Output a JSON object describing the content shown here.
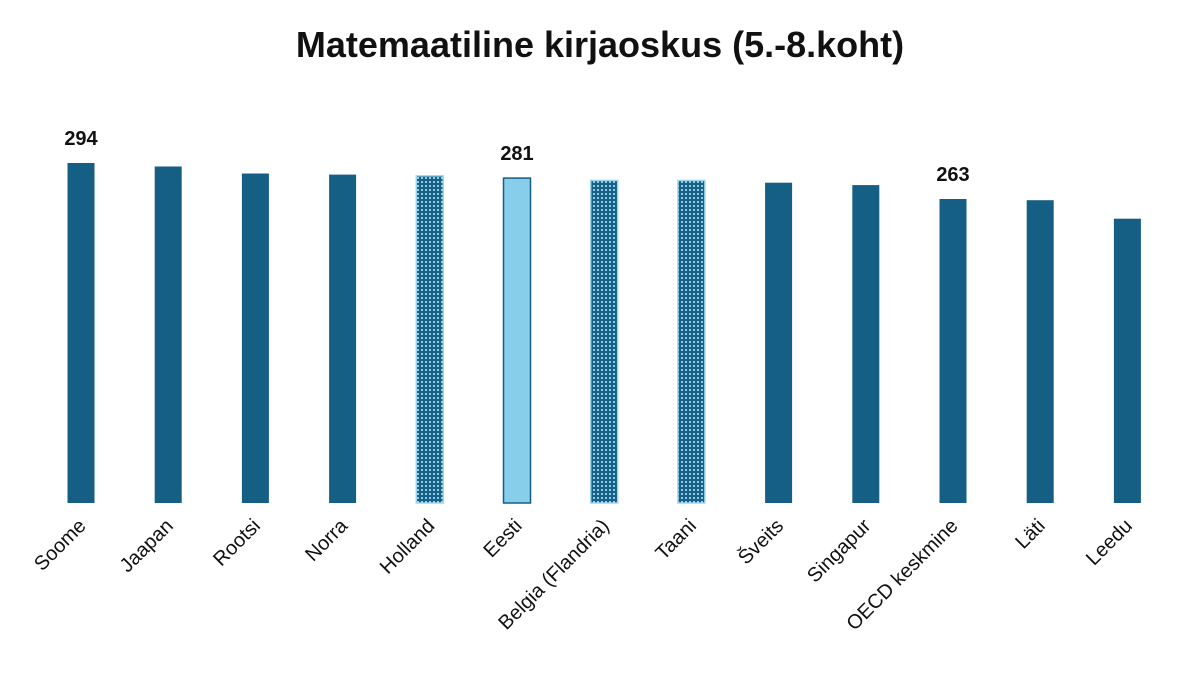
{
  "chart_data": {
    "type": "bar",
    "title": "Matemaatiline kirjaoskus (5.-8.koht)",
    "xlabel": "",
    "ylabel": "",
    "grid": false,
    "categories": [
      "Soome",
      "Jaapan",
      "Rootsi",
      "Norra",
      "Holland",
      "Eesti",
      "Belgia (Flandria)",
      "Taani",
      "Šveits",
      "Singapur",
      "OECD keskmine",
      "Läti",
      "Leedu"
    ],
    "values": [
      294,
      291,
      285,
      284,
      283,
      281,
      279,
      279,
      277,
      275,
      263,
      262,
      246
    ],
    "data_labels": [
      {
        "category": "Soome",
        "text": "294"
      },
      {
        "category": "Eesti",
        "text": "281"
      },
      {
        "category": "OECD keskmine",
        "text": "263"
      }
    ],
    "bar_styles": [
      "solid",
      "solid",
      "solid",
      "solid",
      "dotted",
      "highlight",
      "dotted",
      "dotted",
      "solid",
      "solid",
      "solid",
      "solid",
      "solid"
    ],
    "colors": {
      "solid": "#155f84",
      "highlight": "#87ceeb",
      "highlight_border": "#155f84",
      "dotted_base": "#155f84",
      "dotted_dot": "#9fd6ee"
    }
  }
}
